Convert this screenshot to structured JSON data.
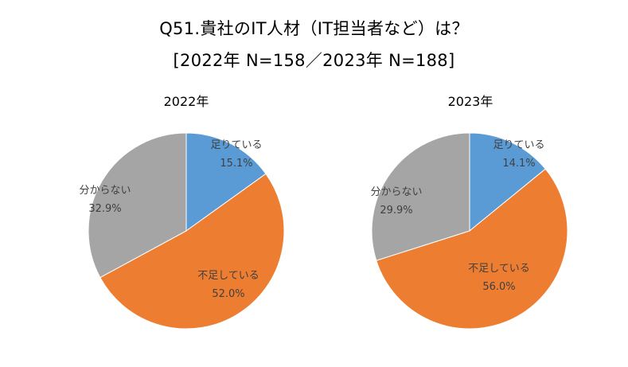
{
  "title_line1": "Q51.貴社のIT人材（IT担当者など）は？",
  "title_line2": "[2022年 N=158／2023年 N=188]",
  "chart_data": [
    {
      "type": "pie",
      "title": "2022年",
      "categories": [
        "足りている",
        "不足している",
        "分からない"
      ],
      "values": [
        15.1,
        52.0,
        32.9
      ],
      "value_labels": [
        "15.1%",
        "52.0%",
        "32.9%"
      ],
      "colors": [
        "#5b9bd5",
        "#ed7d31",
        "#a5a5a5"
      ],
      "start": "12 o'clock, clockwise"
    },
    {
      "type": "pie",
      "title": "2023年",
      "categories": [
        "足りている",
        "不足している",
        "分からない"
      ],
      "values": [
        14.1,
        56.0,
        29.9
      ],
      "value_labels": [
        "14.1%",
        "56.0%",
        "29.9%"
      ],
      "colors": [
        "#5b9bd5",
        "#ed7d31",
        "#a5a5a5"
      ],
      "start": "12 o'clock, clockwise"
    }
  ]
}
